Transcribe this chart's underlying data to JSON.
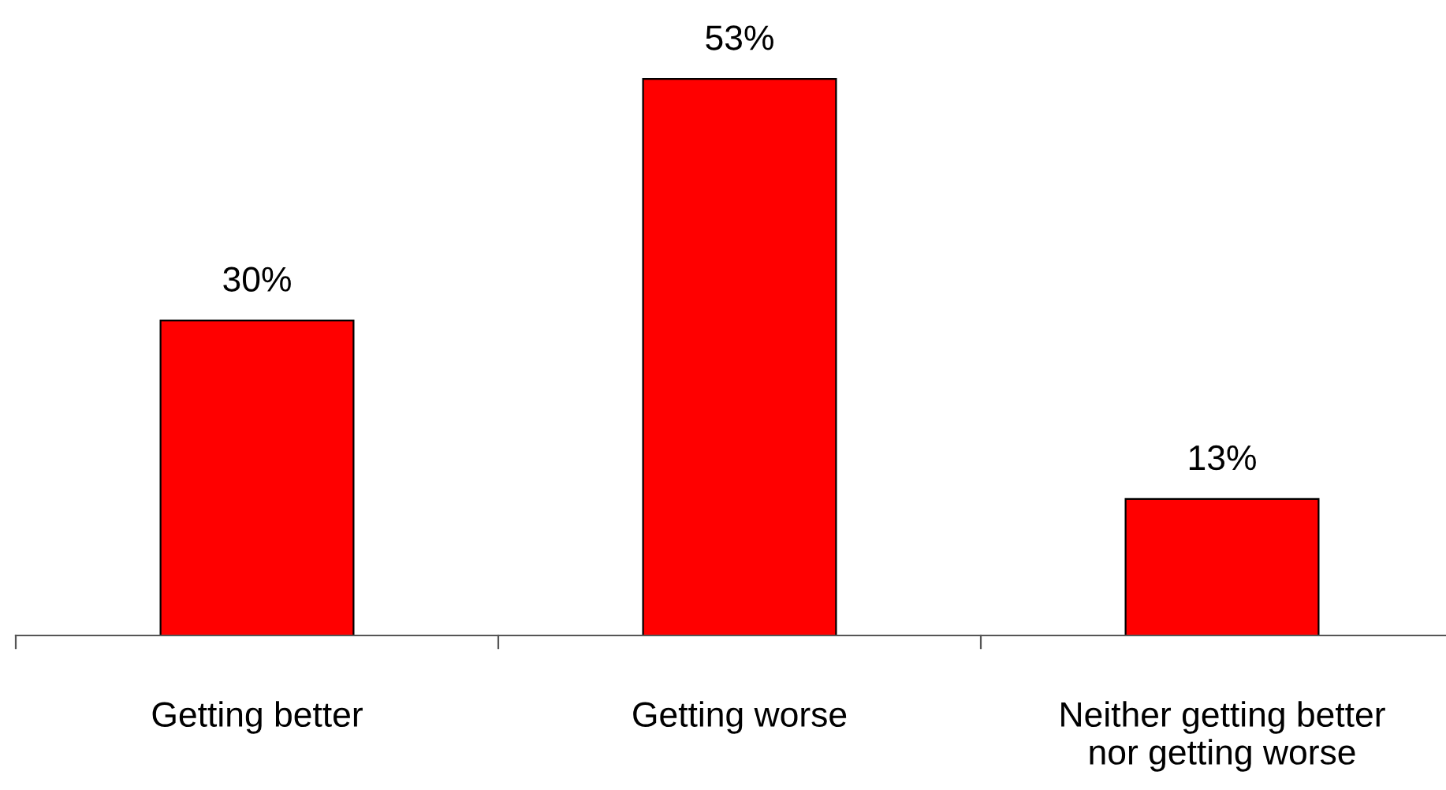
{
  "chart_data": {
    "type": "bar",
    "categories": [
      "Getting better",
      "Getting worse",
      "Neither getting better\nnor getting worse"
    ],
    "values": [
      30,
      53,
      13
    ],
    "color": "#ff0000",
    "data_labels": true,
    "value_labels": [
      "30%",
      "53%",
      "13%"
    ],
    "grid": false,
    "legend": false
  }
}
